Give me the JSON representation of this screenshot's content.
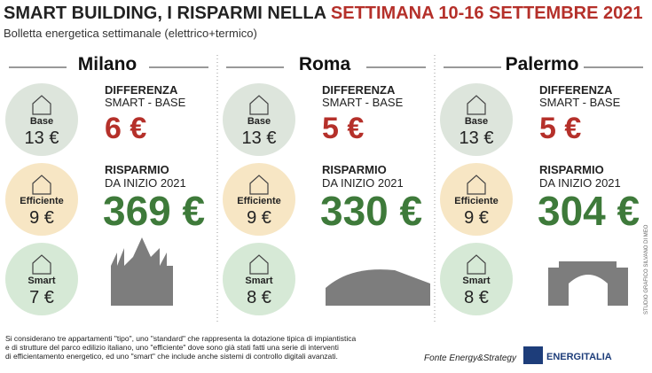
{
  "header": {
    "title": "SMART BUILDING, I RISPARMI NELLA",
    "title_highlight": "SETTIMANA 10-16 SETTEMBRE 2021",
    "subtitle": "Bolletta energetica settimanale (elettrico+termico)"
  },
  "labels": {
    "base": "Base",
    "efficiente": "Efficiente",
    "smart": "Smart",
    "difference_1": "DIFFERENZA",
    "difference_2": "SMART - BASE",
    "savings_1": "RISPARMIO",
    "savings_2": "DA INIZIO 2021"
  },
  "cities": [
    {
      "name": "Milano",
      "base": "13 €",
      "efficiente": "9 €",
      "smart": "7 €",
      "difference": "6 €",
      "savings": "369 €"
    },
    {
      "name": "Roma",
      "base": "13 €",
      "efficiente": "9 €",
      "smart": "8 €",
      "difference": "5 €",
      "savings": "330 €"
    },
    {
      "name": "Palermo",
      "base": "13 €",
      "efficiente": "9 €",
      "smart": "8 €",
      "difference": "5 €",
      "savings": "304 €"
    }
  ],
  "credit": "STUDIO GRAFICO SILVANO DI MEO",
  "footer": {
    "note": [
      "Si considerano tre appartamenti \"tipo\", uno \"standard\" che rappresenta la dotazione tipica di impiantistica",
      "e di strutture del parco edilizio italiano, uno \"efficiente\" dove sono già stati fatti una serie di interventi",
      "di efficientamento energetico, ed uno \"smart\" che include anche sistemi di controllo digitali avanzati."
    ],
    "source": "Fonte Energy&Strategy",
    "brand": "ENERGITALIA"
  }
}
